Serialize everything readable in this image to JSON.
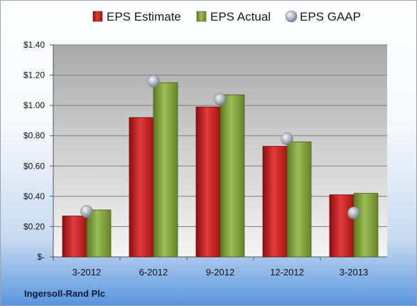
{
  "chart_data": {
    "type": "bar",
    "title": "",
    "xlabel": "",
    "ylabel": "",
    "categories": [
      "3-2012",
      "6-2012",
      "9-2012",
      "12-2012",
      "3-2013"
    ],
    "series": [
      {
        "name": "EPS Estimate",
        "kind": "bar",
        "color": "#cc1f1f",
        "values": [
          0.27,
          0.92,
          0.99,
          0.73,
          0.41
        ]
      },
      {
        "name": "EPS Actual",
        "kind": "bar",
        "color": "#7fa03a",
        "values": [
          0.31,
          1.15,
          1.07,
          0.76,
          0.42
        ]
      },
      {
        "name": "EPS GAAP",
        "kind": "marker",
        "color": "#b7bec8",
        "values": [
          0.3,
          1.16,
          1.04,
          0.78,
          0.29
        ]
      }
    ],
    "ylim": [
      0,
      1.4
    ],
    "yticks": [
      0,
      0.2,
      0.4,
      0.6,
      0.8,
      1.0,
      1.2,
      1.4
    ],
    "ytick_labels": [
      "$-",
      "$0.20",
      "$0.40",
      "$0.60",
      "$0.80",
      "$1.00",
      "$1.20",
      "$1.40"
    ],
    "grid": true,
    "legend_position": "top"
  },
  "footer_label": "Ingersoll-Rand Plc"
}
